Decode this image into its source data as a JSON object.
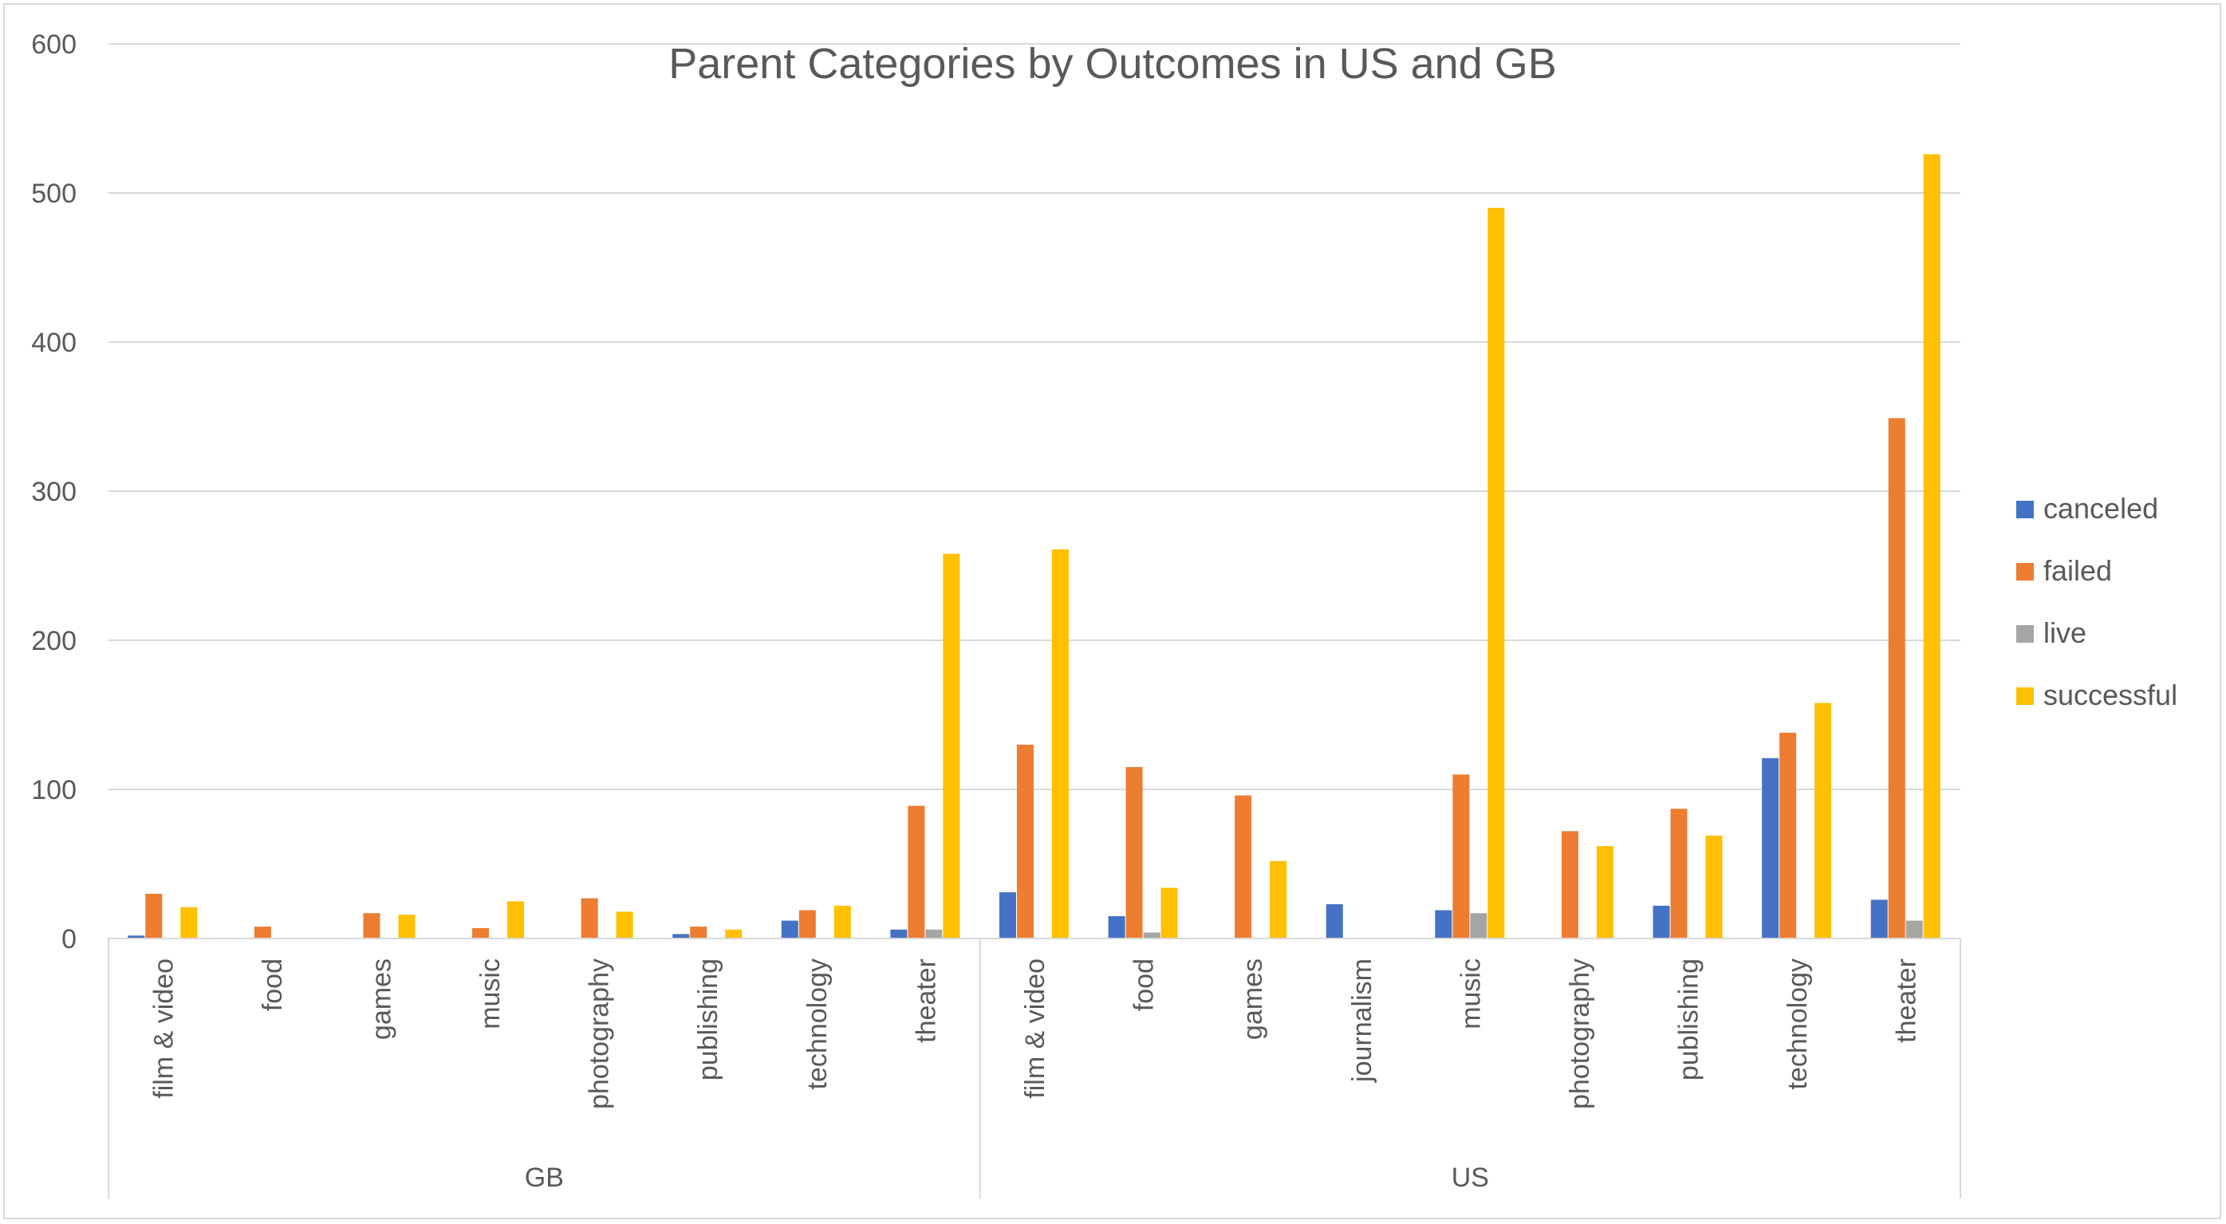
{
  "chart_data": {
    "type": "bar",
    "title": "Parent Categories by Outcomes in US and GB",
    "xlabel": "",
    "ylabel": "",
    "ylim": [
      0,
      600
    ],
    "yticks": [
      0,
      100,
      200,
      300,
      400,
      500,
      600
    ],
    "grid": true,
    "legend_position": "right",
    "groups": [
      {
        "name": "GB",
        "categories": [
          "film & video",
          "food",
          "games",
          "music",
          "photography",
          "publishing",
          "technology",
          "theater"
        ]
      },
      {
        "name": "US",
        "categories": [
          "film & video",
          "food",
          "games",
          "journalism",
          "music",
          "photography",
          "publishing",
          "technology",
          "theater"
        ]
      }
    ],
    "series": [
      {
        "name": "canceled",
        "color": "#4472c4",
        "values": [
          2,
          0,
          0,
          0,
          0,
          3,
          12,
          6,
          31,
          15,
          0,
          23,
          19,
          0,
          22,
          121,
          26
        ]
      },
      {
        "name": "failed",
        "color": "#ed7d31",
        "values": [
          30,
          8,
          17,
          7,
          27,
          8,
          19,
          89,
          130,
          115,
          96,
          0,
          110,
          72,
          87,
          138,
          349
        ]
      },
      {
        "name": "live",
        "color": "#a5a5a5",
        "values": [
          0,
          0,
          0,
          0,
          0,
          0,
          0,
          6,
          0,
          4,
          0,
          0,
          17,
          0,
          0,
          0,
          12
        ]
      },
      {
        "name": "successful",
        "color": "#ffc000",
        "values": [
          21,
          0,
          16,
          25,
          18,
          6,
          22,
          258,
          261,
          34,
          52,
          0,
          490,
          62,
          69,
          158,
          526
        ]
      }
    ]
  }
}
